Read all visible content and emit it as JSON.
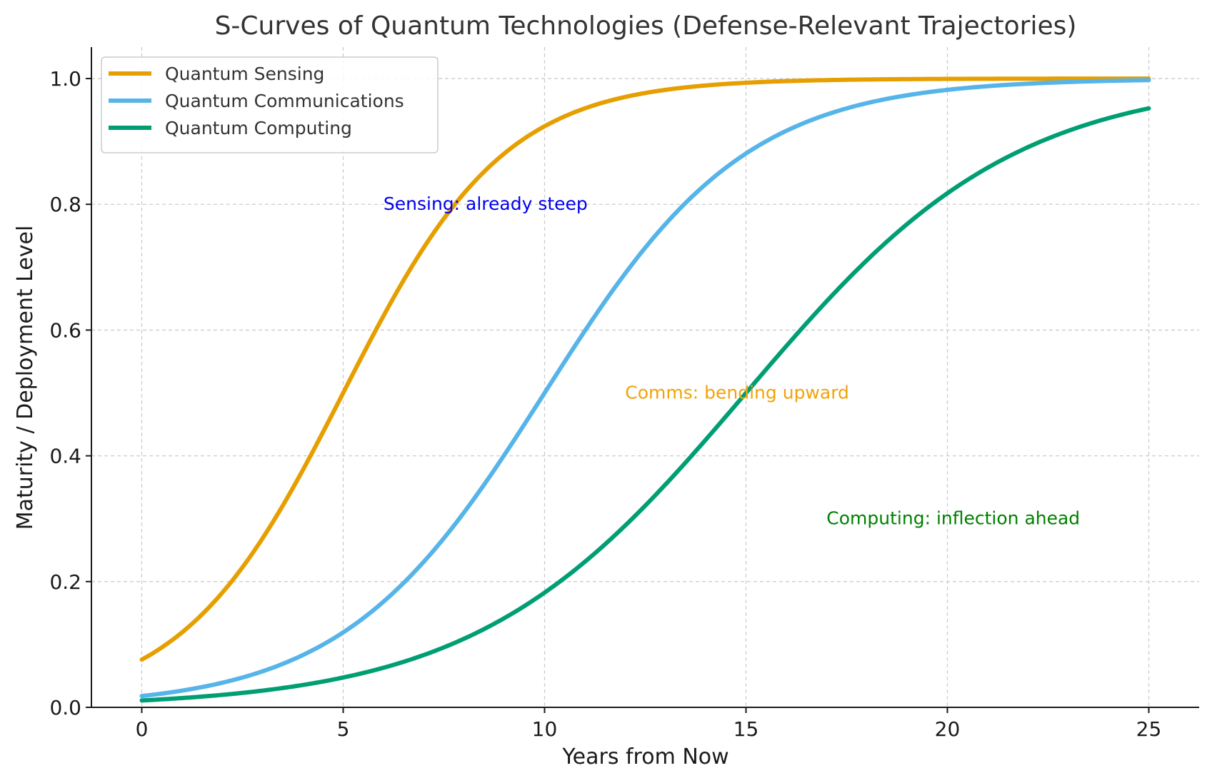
{
  "chart_data": {
    "type": "line",
    "title": "S-Curves of Quantum Technologies (Defense-Relevant Trajectories)",
    "xlabel": "Years from Now",
    "ylabel": "Maturity / Deployment Level",
    "xlim": [
      -1.25,
      26.25
    ],
    "ylim": [
      0,
      1.05
    ],
    "xticks": [
      0,
      5,
      10,
      15,
      20,
      25
    ],
    "yticks": [
      0.0,
      0.2,
      0.4,
      0.6,
      0.8,
      1.0
    ],
    "xtick_labels": [
      "0",
      "5",
      "10",
      "15",
      "20",
      "25"
    ],
    "ytick_labels": [
      "0.0",
      "0.2",
      "0.4",
      "0.6",
      "0.8",
      "1.0"
    ],
    "grid": true,
    "legend_position": "top-left",
    "series": [
      {
        "name": "Quantum Sensing",
        "color": "#E69F00",
        "model": "logistic",
        "midpoint": 5,
        "steepness": 0.5,
        "x": [
          0,
          2,
          4,
          5,
          6,
          8,
          10,
          15,
          20,
          25
        ],
        "y": [
          0.076,
          0.18,
          0.38,
          0.5,
          0.62,
          0.82,
          0.92,
          0.993,
          1.0,
          1.0
        ]
      },
      {
        "name": "Quantum Communications",
        "color": "#56B4E9",
        "model": "logistic",
        "midpoint": 10,
        "steepness": 0.4,
        "x": [
          0,
          5,
          8,
          10,
          12,
          15,
          20,
          25
        ],
        "y": [
          0.018,
          0.12,
          0.31,
          0.5,
          0.69,
          0.88,
          0.982,
          0.998
        ]
      },
      {
        "name": "Quantum Computing",
        "color": "#009E73",
        "model": "logistic",
        "midpoint": 15,
        "steepness": 0.3,
        "x": [
          0,
          5,
          10,
          12,
          15,
          18,
          20,
          25
        ],
        "y": [
          0.011,
          0.047,
          0.18,
          0.29,
          0.5,
          0.71,
          0.82,
          0.953
        ]
      }
    ],
    "annotations": [
      {
        "text": "Sensing: already steep",
        "x": 6,
        "y": 0.8,
        "color": "#0000EE"
      },
      {
        "text": "Comms: bending upward",
        "x": 12,
        "y": 0.5,
        "color": "#F0A30A"
      },
      {
        "text": "Computing: inflection ahead",
        "x": 17,
        "y": 0.3,
        "color": "#008000"
      }
    ]
  }
}
